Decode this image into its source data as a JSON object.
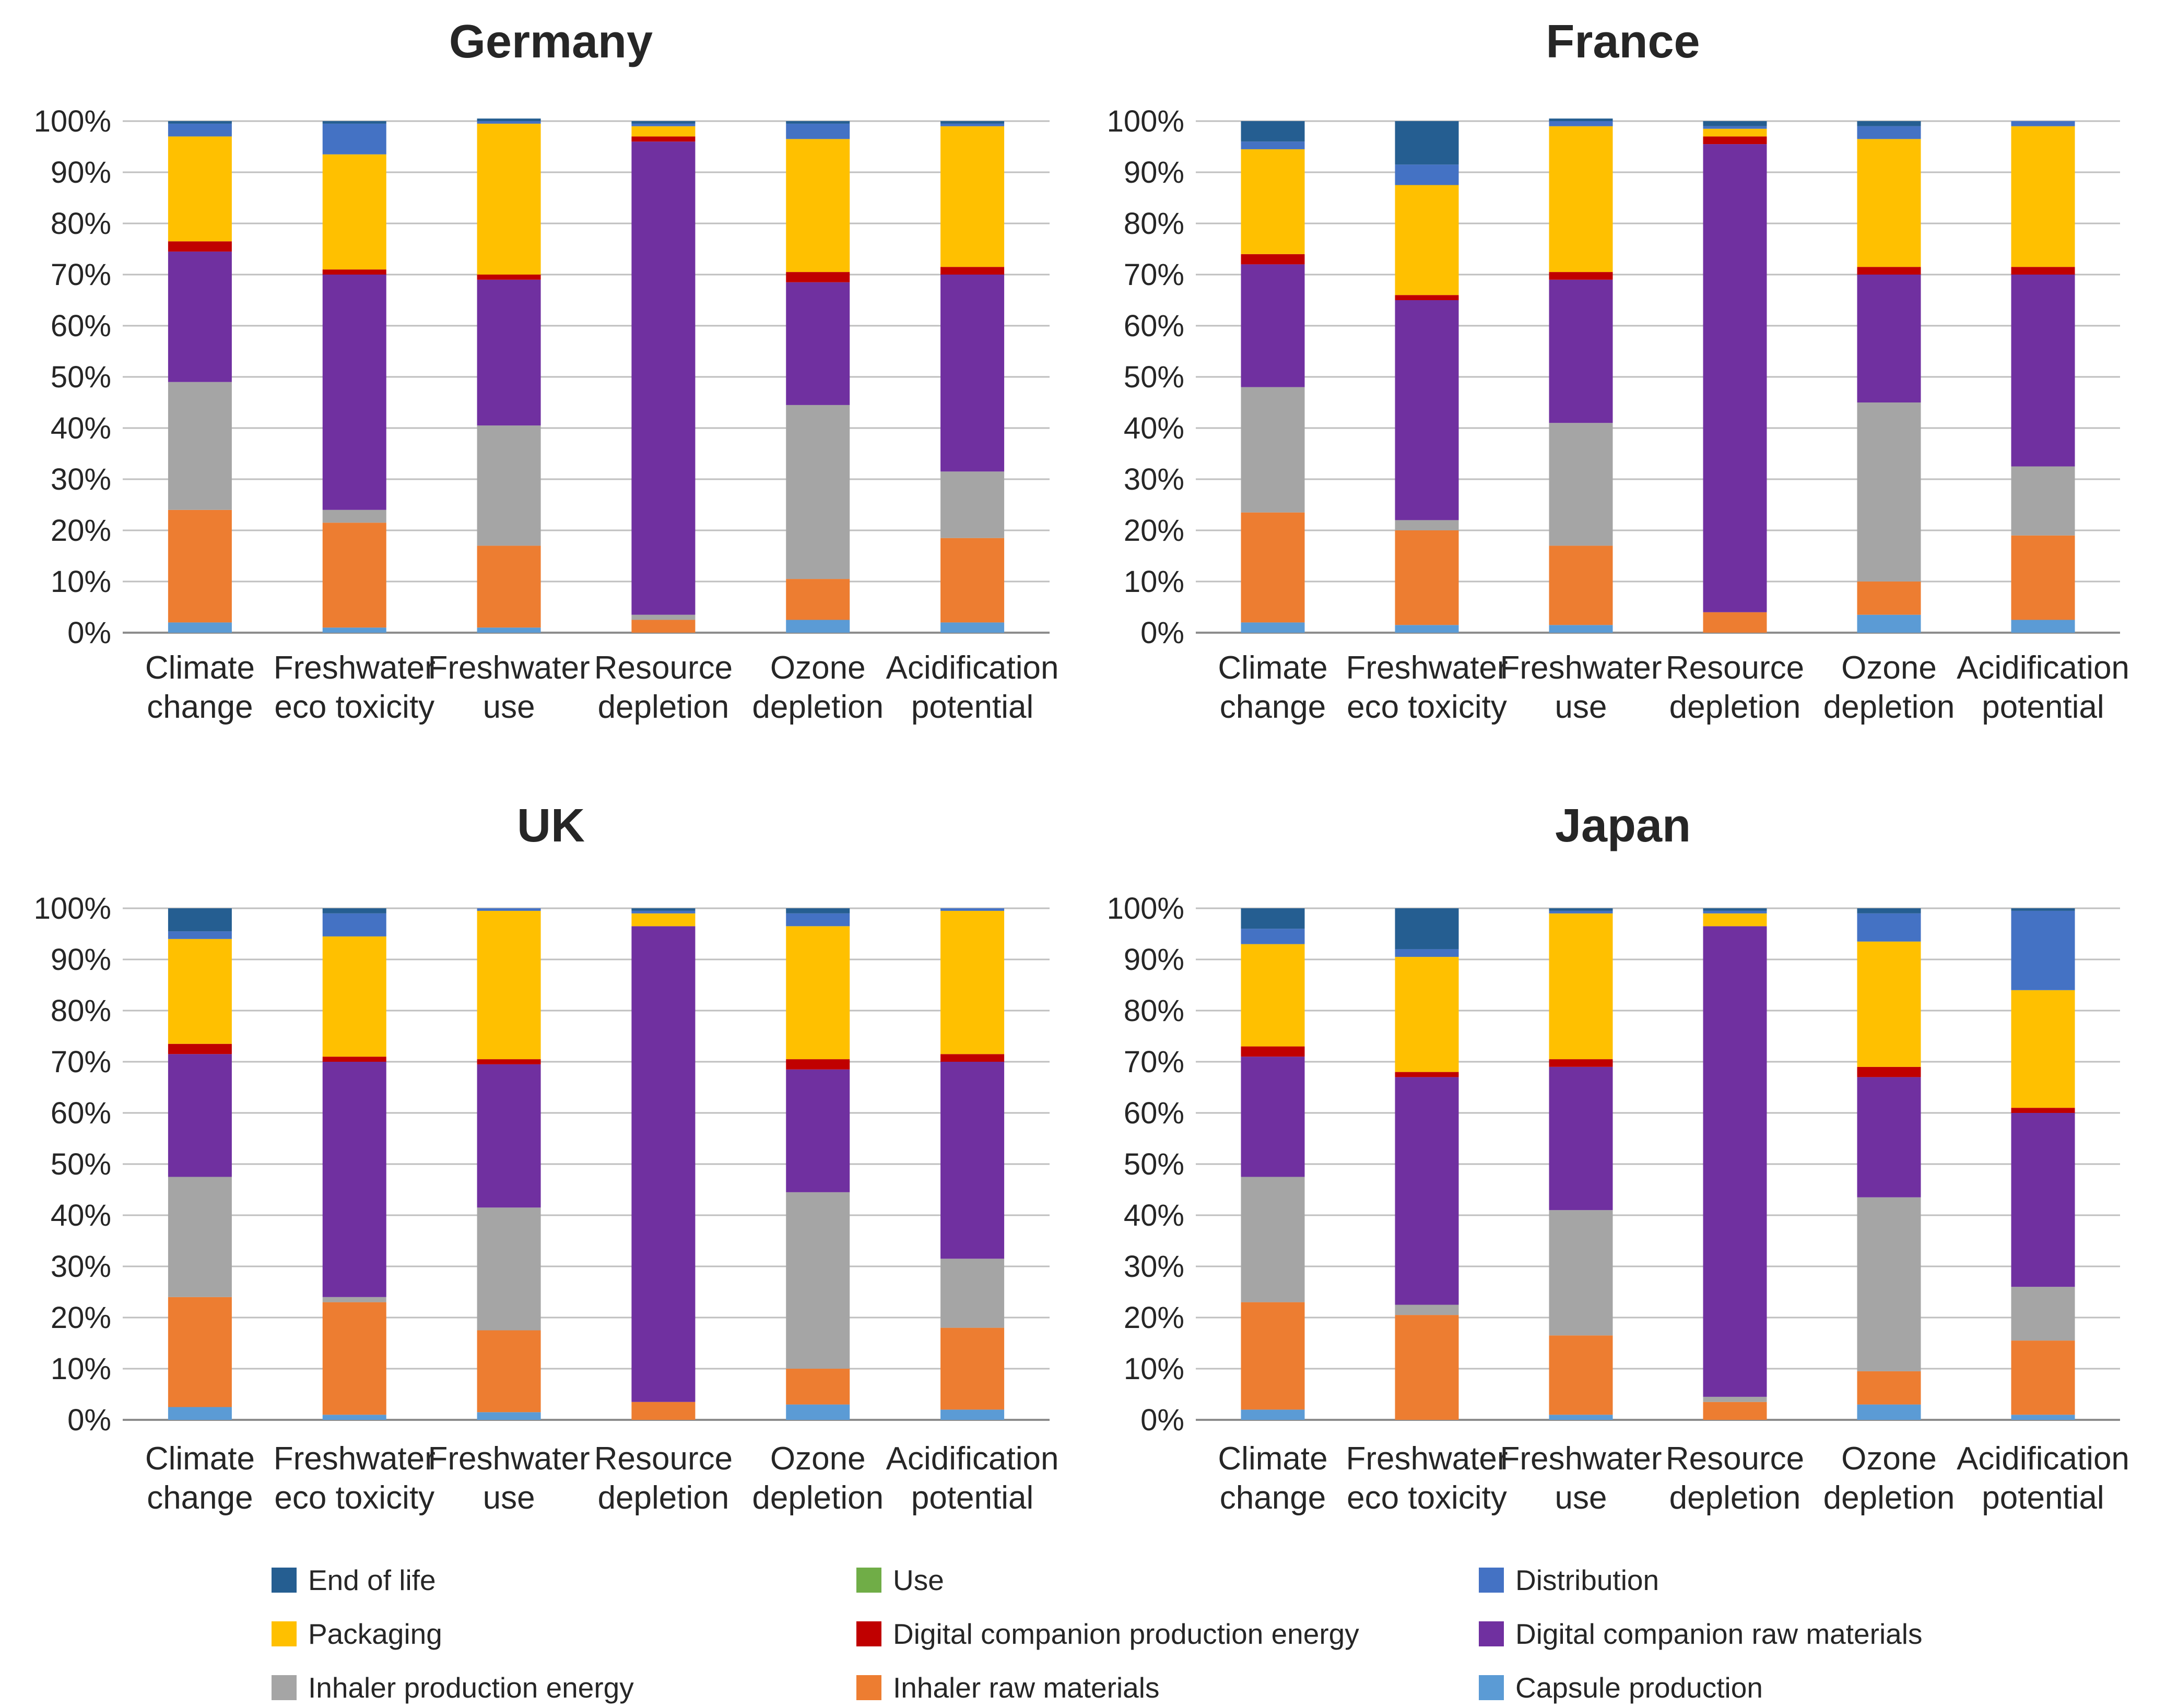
{
  "chart_data": [
    {
      "type": "bar",
      "stacked": true,
      "title": "Germany",
      "categories": [
        [
          "Climate",
          "change"
        ],
        [
          "Freshwater",
          "eco toxicity"
        ],
        [
          "Freshwater",
          "use"
        ],
        [
          "Resource",
          "depletion"
        ],
        [
          "Ozone",
          "depletion"
        ],
        [
          "Acidification",
          "potential"
        ]
      ],
      "yticks": [
        "0%",
        "10%",
        "20%",
        "30%",
        "40%",
        "50%",
        "60%",
        "70%",
        "80%",
        "90%",
        "100%"
      ],
      "ylim": [
        0,
        100
      ],
      "series": [
        {
          "name": "Capsule production",
          "values": [
            2,
            1,
            1,
            0,
            2.5,
            2
          ]
        },
        {
          "name": "Inhaler raw materials",
          "values": [
            22,
            20.5,
            16,
            2.5,
            8,
            16.5
          ]
        },
        {
          "name": "Inhaler production energy",
          "values": [
            25,
            2.5,
            23.5,
            1,
            34,
            13
          ]
        },
        {
          "name": "Digital companion raw materials",
          "values": [
            25.5,
            46,
            28.5,
            92.5,
            24,
            38.5
          ]
        },
        {
          "name": "Digital companion production energy",
          "values": [
            2,
            1,
            1,
            1,
            2,
            1.5
          ]
        },
        {
          "name": "Use",
          "values": [
            0,
            0,
            0,
            0,
            0,
            0
          ]
        },
        {
          "name": "Packaging",
          "values": [
            20.5,
            22.5,
            29.5,
            2,
            26,
            27.5
          ]
        },
        {
          "name": "Distribution",
          "values": [
            2.5,
            6,
            0.5,
            0.5,
            3,
            0.5
          ]
        },
        {
          "name": "End of life",
          "values": [
            0.5,
            0.5,
            0.5,
            0.5,
            0.5,
            0.5
          ]
        }
      ]
    },
    {
      "type": "bar",
      "stacked": true,
      "title": "France",
      "categories": [
        [
          "Climate",
          "change"
        ],
        [
          "Freshwater",
          "eco toxicity"
        ],
        [
          "Freshwater",
          "use"
        ],
        [
          "Resource",
          "depletion"
        ],
        [
          "Ozone",
          "depletion"
        ],
        [
          "Acidification",
          "potential"
        ]
      ],
      "yticks": [
        "0%",
        "10%",
        "20%",
        "30%",
        "40%",
        "50%",
        "60%",
        "70%",
        "80%",
        "90%",
        "100%"
      ],
      "ylim": [
        0,
        100
      ],
      "series": [
        {
          "name": "Capsule production",
          "values": [
            2,
            1.5,
            1.5,
            0,
            3.5,
            2.5
          ]
        },
        {
          "name": "Inhaler raw materials",
          "values": [
            21.5,
            18.5,
            15.5,
            4,
            6.5,
            16.5
          ]
        },
        {
          "name": "Inhaler production energy",
          "values": [
            24.5,
            2,
            24,
            0,
            35,
            13.5
          ]
        },
        {
          "name": "Digital companion raw materials",
          "values": [
            24,
            43,
            28,
            91.5,
            25,
            37.5
          ]
        },
        {
          "name": "Digital companion production energy",
          "values": [
            2,
            1,
            1.5,
            1.5,
            1.5,
            1.5
          ]
        },
        {
          "name": "Use",
          "values": [
            0,
            0,
            0,
            0,
            0,
            0
          ]
        },
        {
          "name": "Packaging",
          "values": [
            20.5,
            21.5,
            28.5,
            1.5,
            25,
            27.5
          ]
        },
        {
          "name": "Distribution",
          "values": [
            1.5,
            4,
            1,
            0.5,
            2.5,
            1
          ]
        },
        {
          "name": "End of life",
          "values": [
            4,
            8.5,
            0.5,
            1,
            1,
            0
          ]
        }
      ]
    },
    {
      "type": "bar",
      "stacked": true,
      "title": "UK",
      "categories": [
        [
          "Climate",
          "change"
        ],
        [
          "Freshwater",
          "eco toxicity"
        ],
        [
          "Freshwater",
          "use"
        ],
        [
          "Resource",
          "depletion"
        ],
        [
          "Ozone",
          "depletion"
        ],
        [
          "Acidification",
          "potential"
        ]
      ],
      "yticks": [
        "0%",
        "10%",
        "20%",
        "30%",
        "40%",
        "50%",
        "60%",
        "70%",
        "80%",
        "90%",
        "100%"
      ],
      "ylim": [
        0,
        100
      ],
      "series": [
        {
          "name": "Capsule production",
          "values": [
            2.5,
            1,
            1.5,
            0,
            3,
            2
          ]
        },
        {
          "name": "Inhaler raw materials",
          "values": [
            21.5,
            22,
            16,
            3.5,
            7,
            16
          ]
        },
        {
          "name": "Inhaler production energy",
          "values": [
            23.5,
            1,
            24,
            0,
            34.5,
            13.5
          ]
        },
        {
          "name": "Digital companion raw materials",
          "values": [
            24,
            46,
            28,
            93,
            24,
            38.5
          ]
        },
        {
          "name": "Digital companion production energy",
          "values": [
            2,
            1,
            1,
            0,
            2,
            1.5
          ]
        },
        {
          "name": "Use",
          "values": [
            0,
            0,
            0,
            0,
            0,
            0
          ]
        },
        {
          "name": "Packaging",
          "values": [
            20.5,
            23.5,
            29,
            2.5,
            26,
            28
          ]
        },
        {
          "name": "Distribution",
          "values": [
            1.5,
            4.5,
            0.5,
            0.5,
            2.5,
            0.5
          ]
        },
        {
          "name": "End of life",
          "values": [
            4.5,
            1,
            0,
            0.5,
            1,
            0
          ]
        }
      ]
    },
    {
      "type": "bar",
      "stacked": true,
      "title": "Japan",
      "categories": [
        [
          "Climate",
          "change"
        ],
        [
          "Freshwater",
          "eco toxicity"
        ],
        [
          "Freshwater",
          "use"
        ],
        [
          "Resource",
          "depletion"
        ],
        [
          "Ozone",
          "depletion"
        ],
        [
          "Acidification",
          "potential"
        ]
      ],
      "yticks": [
        "0%",
        "10%",
        "20%",
        "30%",
        "40%",
        "50%",
        "60%",
        "70%",
        "80%",
        "90%",
        "100%"
      ],
      "ylim": [
        0,
        100
      ],
      "series": [
        {
          "name": "Capsule production",
          "values": [
            2,
            0,
            1,
            0,
            3,
            1
          ]
        },
        {
          "name": "Inhaler raw materials",
          "values": [
            21,
            20.5,
            15.5,
            3.5,
            6.5,
            14.5
          ]
        },
        {
          "name": "Inhaler production energy",
          "values": [
            24.5,
            2,
            24.5,
            1,
            34,
            10.5
          ]
        },
        {
          "name": "Digital companion raw materials",
          "values": [
            23.5,
            44.5,
            28,
            92,
            23.5,
            34
          ]
        },
        {
          "name": "Digital companion production energy",
          "values": [
            2,
            1,
            1.5,
            0,
            2,
            1
          ]
        },
        {
          "name": "Use",
          "values": [
            0,
            0,
            0,
            0,
            0,
            0
          ]
        },
        {
          "name": "Packaging",
          "values": [
            20,
            22.5,
            28.5,
            2.5,
            24.5,
            23
          ]
        },
        {
          "name": "Distribution",
          "values": [
            3,
            1.5,
            0.5,
            0.5,
            5.5,
            15.5
          ]
        },
        {
          "name": "End of life",
          "values": [
            4,
            8,
            0.5,
            0.5,
            1,
            0.5
          ]
        }
      ]
    }
  ],
  "legend": [
    {
      "label": "End of life",
      "key": "eol"
    },
    {
      "label": "Use",
      "key": "use"
    },
    {
      "label": "Distribution",
      "key": "distribution"
    },
    {
      "label": "Packaging",
      "key": "packaging"
    },
    {
      "label": "Digital companion production energy",
      "key": "dc_energy"
    },
    {
      "label": "Digital companion raw materials",
      "key": "dc_raw"
    },
    {
      "label": "Inhaler production energy",
      "key": "inh_energy"
    },
    {
      "label": "Inhaler raw materials",
      "key": "inh_raw"
    },
    {
      "label": "Capsule production",
      "key": "capsule"
    }
  ],
  "colors": {
    "End of life": "#255E91",
    "Use": "#70AD47",
    "Distribution": "#4472C4",
    "Packaging": "#FFC000",
    "Digital companion production energy": "#C00000",
    "Digital companion raw materials": "#7030A0",
    "Inhaler production energy": "#A5A5A5",
    "Inhaler raw materials": "#ED7D31",
    "Capsule production": "#5B9BD5"
  }
}
